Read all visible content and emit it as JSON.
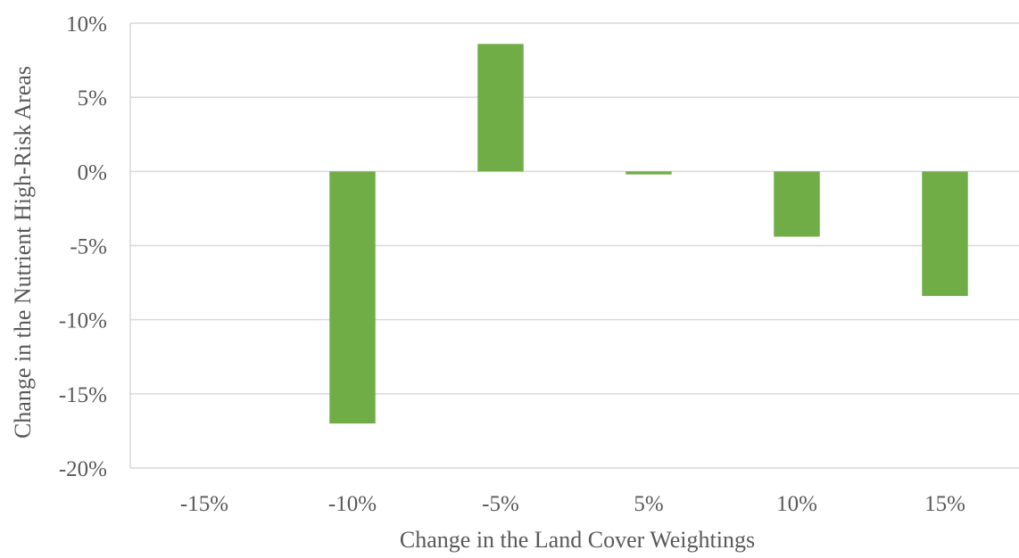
{
  "chart_data": {
    "type": "bar",
    "title": "",
    "xlabel": "Change in the Land Cover Weightings",
    "ylabel": "Change in the Nutrient High-Risk Areas",
    "categories": [
      "-15%",
      "-10%",
      "-5%",
      "5%",
      "10%",
      "15%"
    ],
    "series": [
      {
        "values": [
          0,
          -17.0,
          8.6,
          -0.2,
          -4.4,
          -8.4
        ]
      }
    ],
    "ylim": [
      -20,
      10
    ],
    "y_ticks": [
      10,
      5,
      0,
      -5,
      -10,
      -15,
      -20
    ],
    "y_tick_labels": [
      "10%",
      "5%",
      "0%",
      "-5%",
      "-10%",
      "-15%",
      "-20%"
    ],
    "value_unit": "%",
    "grid": true,
    "legend": "none",
    "colors": {
      "bar": "#70ad47",
      "grid": "#d9d9d9",
      "text": "#595959"
    }
  }
}
